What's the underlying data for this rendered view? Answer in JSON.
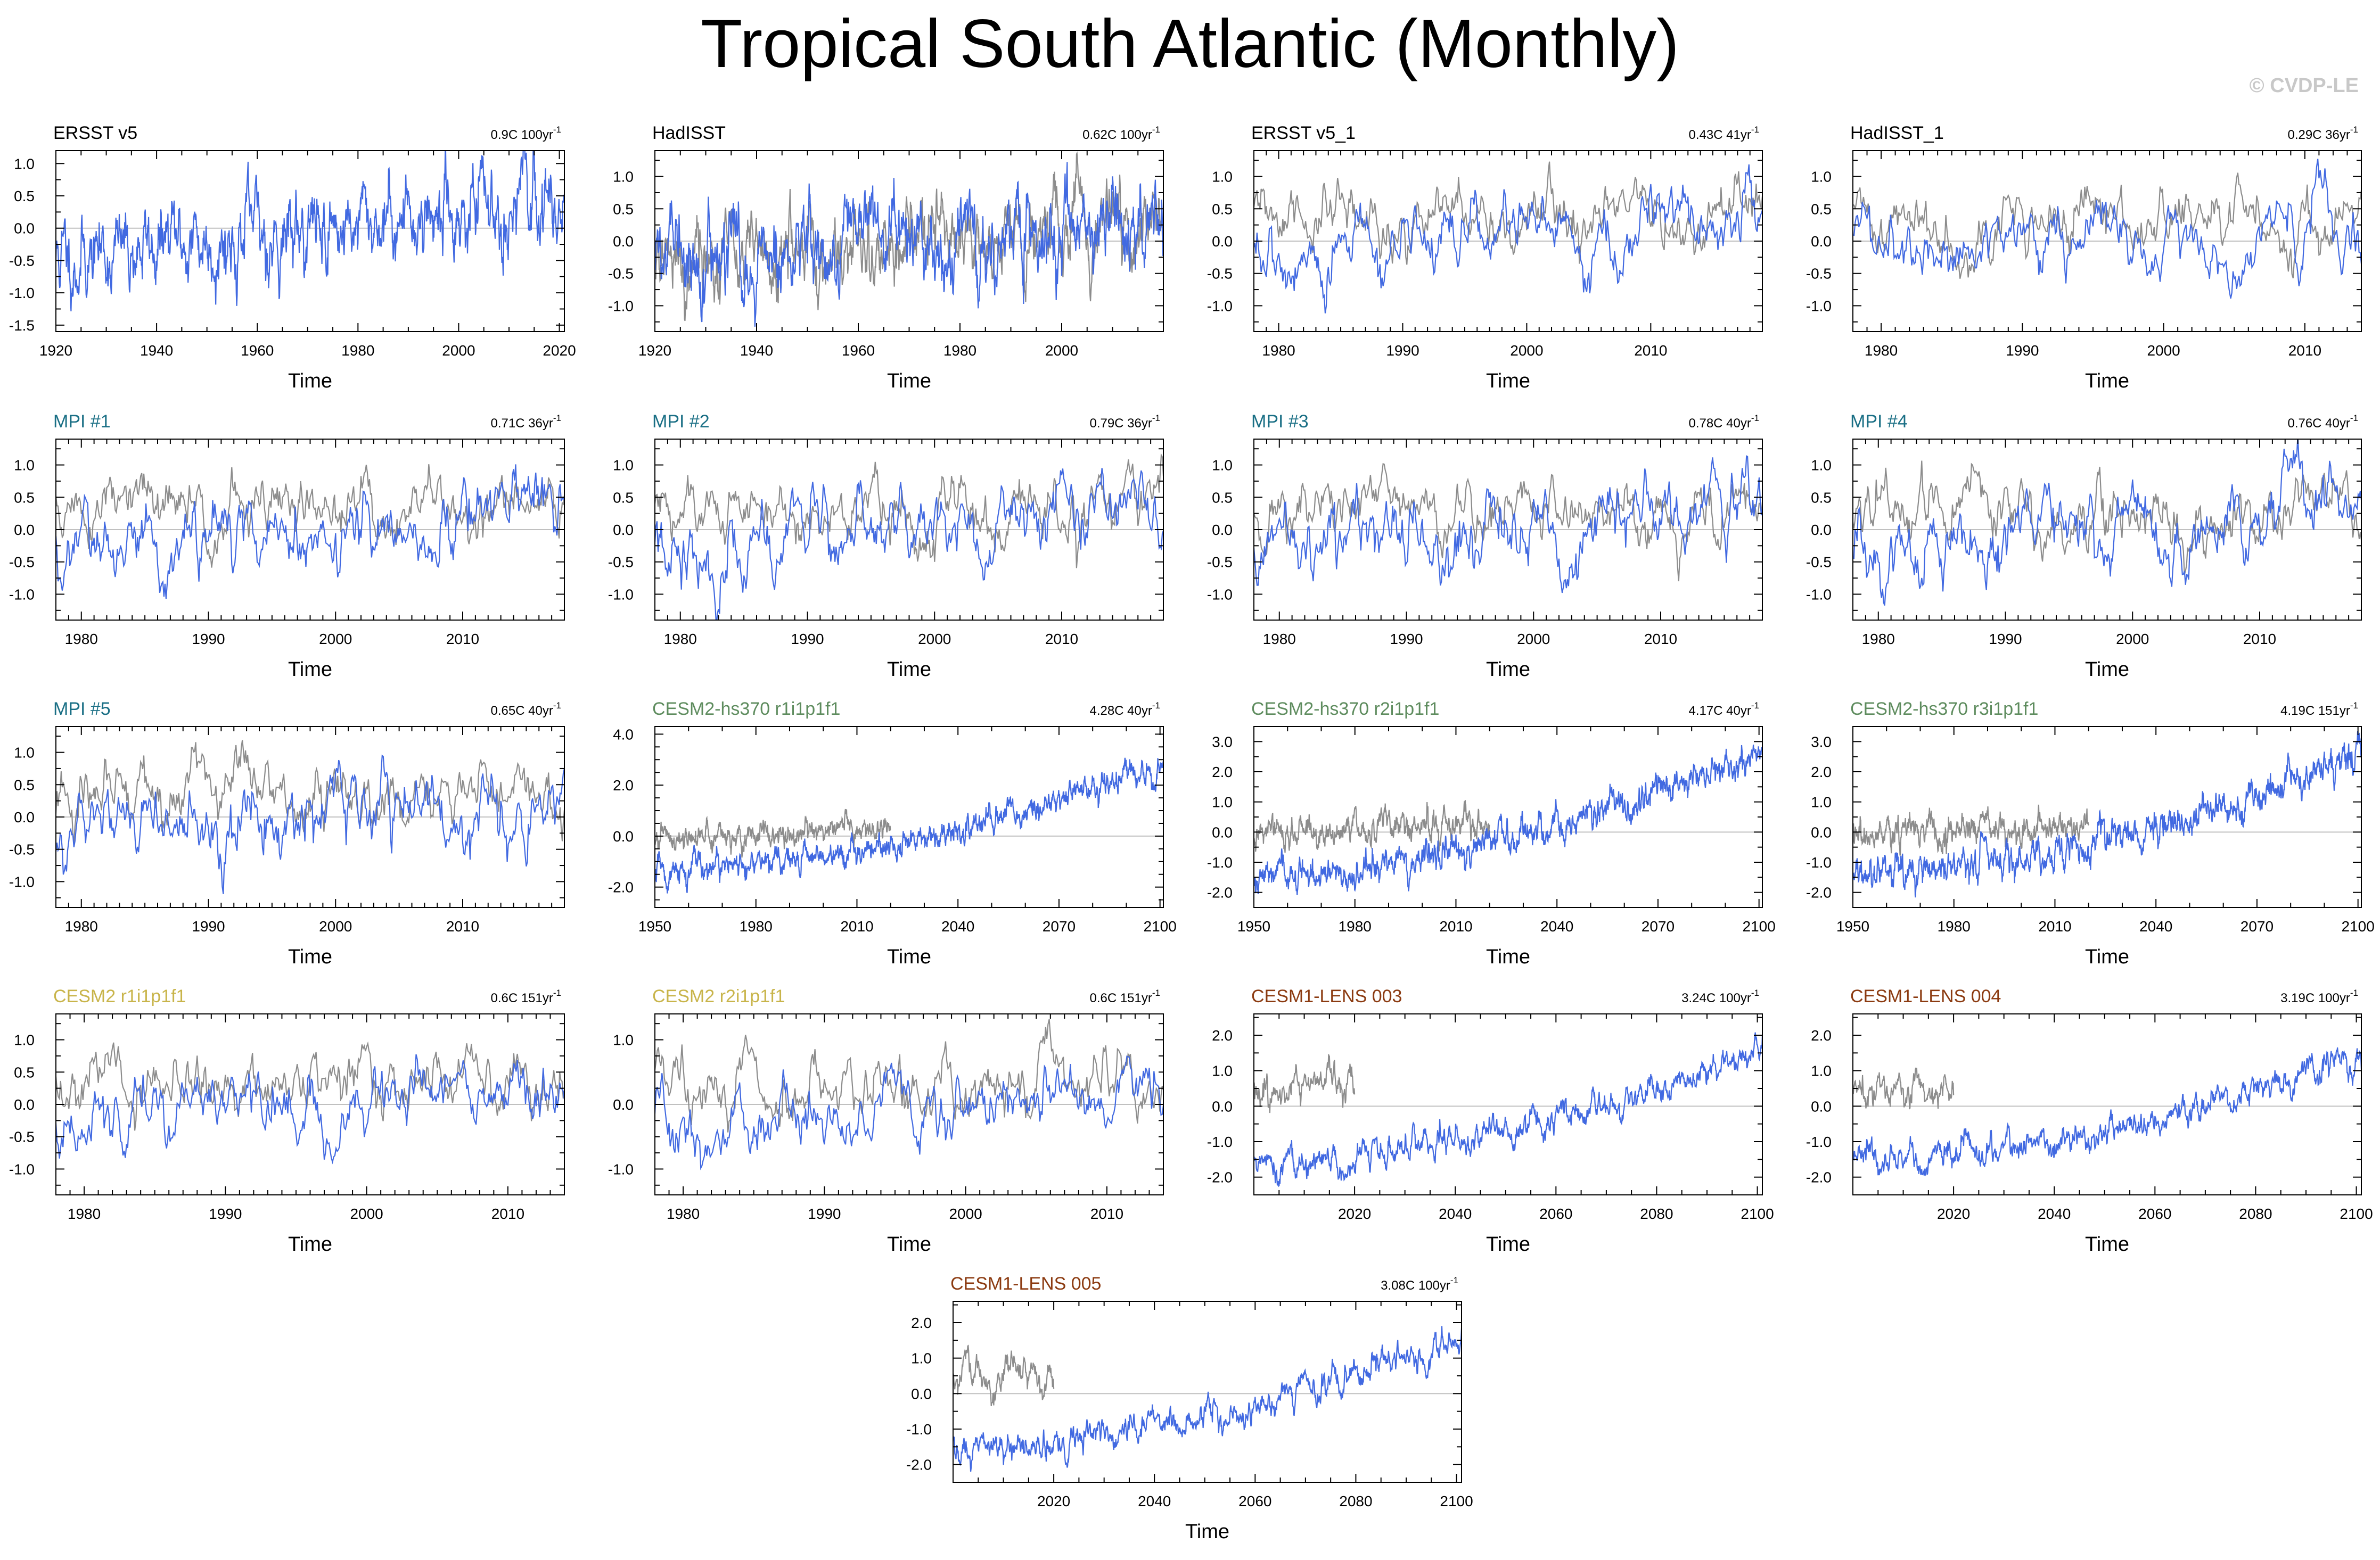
{
  "page": {
    "title": "Tropical South Atlantic (Monthly)",
    "credit": "© CVDP-LE"
  },
  "colors": {
    "model": "#4169e1",
    "obs": "#8c8c8c",
    "zero": "#c0c0c0",
    "frame": "#000000",
    "title_obs": "#000000",
    "title_mpi": "#1a6f85",
    "title_cesm2hs": "#5e8c5e",
    "title_cesm2": "#c8b44a",
    "title_lens": "#8b3a10"
  },
  "chart_data": [
    {
      "type": "line",
      "title": "ERSST v5",
      "title_color_key": "title_obs",
      "trend": "0.9C 100yr",
      "trend_sup": "-1",
      "xlabel": "Time",
      "x_range": [
        1920,
        2021
      ],
      "xticks": [
        1920,
        1940,
        1960,
        1980,
        2000,
        2020
      ],
      "ylim": [
        -1.6,
        1.2
      ],
      "yticks": [
        1.0,
        0.5,
        0.0,
        -0.5,
        -1.0,
        -1.5
      ],
      "ytick_labels": [
        "1.0",
        "0.5",
        "0.0",
        "-0.5",
        "-1.0",
        "-1.5"
      ],
      "series": [
        {
          "color_key": "model",
          "x_range": [
            1920,
            2021
          ],
          "trend_per_year": 0.009,
          "noise": 0.36,
          "mean": 0.0,
          "seed": 11
        }
      ]
    },
    {
      "type": "line",
      "title": "HadISST",
      "title_color_key": "title_obs",
      "trend": "0.62C 100yr",
      "trend_sup": "-1",
      "xlabel": "Time",
      "x_range": [
        1920,
        2020
      ],
      "xticks": [
        1920,
        1940,
        1960,
        1980,
        2000
      ],
      "ylim": [
        -1.4,
        1.4
      ],
      "yticks": [
        1.0,
        0.5,
        0.0,
        -0.5,
        -1.0
      ],
      "ytick_labels": [
        "1.0",
        "0.5",
        "0.0",
        "-0.5",
        "-1.0"
      ],
      "series": [
        {
          "color_key": "obs",
          "x_range": [
            1920,
            2020
          ],
          "trend_per_year": 0.0062,
          "noise": 0.34,
          "mean": 0.0,
          "seed": 21
        },
        {
          "color_key": "model",
          "x_range": [
            1920,
            2020
          ],
          "trend_per_year": 0.0062,
          "noise": 0.36,
          "mean": 0.0,
          "seed": 22
        }
      ]
    },
    {
      "type": "line",
      "title": "ERSST v5_1",
      "title_color_key": "title_obs",
      "trend": "0.43C 41yr",
      "trend_sup": "-1",
      "xlabel": "Time",
      "x_range": [
        1978,
        2019
      ],
      "xticks": [
        1980,
        1990,
        2000,
        2010
      ],
      "ylim": [
        -1.4,
        1.4
      ],
      "yticks": [
        1.0,
        0.5,
        0.0,
        -0.5,
        -1.0
      ],
      "ytick_labels": [
        "1.0",
        "0.5",
        "0.0",
        "-0.5",
        "-1.0"
      ],
      "series": [
        {
          "color_key": "obs",
          "x_range": [
            1978,
            2019
          ],
          "trend_per_year": 0.0,
          "noise": 0.3,
          "mean": 0.3,
          "seed": 31
        },
        {
          "color_key": "model",
          "x_range": [
            1978,
            2019
          ],
          "trend_per_year": 0.0105,
          "noise": 0.32,
          "mean": 0.0,
          "seed": 32
        }
      ]
    },
    {
      "type": "line",
      "title": "HadISST_1",
      "title_color_key": "title_obs",
      "trend": "0.29C 36yr",
      "trend_sup": "-1",
      "xlabel": "Time",
      "x_range": [
        1978,
        2014
      ],
      "xticks": [
        1980,
        1990,
        2000,
        2010
      ],
      "ylim": [
        -1.4,
        1.4
      ],
      "yticks": [
        1.0,
        0.5,
        0.0,
        -0.5,
        -1.0
      ],
      "ytick_labels": [
        "1.0",
        "0.5",
        "0.0",
        "-0.5",
        "-1.0"
      ],
      "series": [
        {
          "color_key": "obs",
          "x_range": [
            1978,
            2014
          ],
          "trend_per_year": 0.0,
          "noise": 0.3,
          "mean": 0.3,
          "seed": 41
        },
        {
          "color_key": "model",
          "x_range": [
            1978,
            2014
          ],
          "trend_per_year": 0.008,
          "noise": 0.32,
          "mean": 0.0,
          "seed": 42
        }
      ]
    },
    {
      "type": "line",
      "title": "MPI #1",
      "title_color_key": "title_mpi",
      "trend": "0.71C 36yr",
      "trend_sup": "-1",
      "xlabel": "Time",
      "x_range": [
        1978,
        2018
      ],
      "xticks": [
        1980,
        1990,
        2000,
        2010
      ],
      "ylim": [
        -1.4,
        1.4
      ],
      "yticks": [
        1.0,
        0.5,
        0.0,
        -0.5,
        -1.0
      ],
      "ytick_labels": [
        "1.0",
        "0.5",
        "0.0",
        "-0.5",
        "-1.0"
      ],
      "series": [
        {
          "color_key": "obs",
          "x_range": [
            1978,
            2018
          ],
          "trend_per_year": 0.0,
          "noise": 0.3,
          "mean": 0.3,
          "seed": 51
        },
        {
          "color_key": "model",
          "x_range": [
            1978,
            2018
          ],
          "trend_per_year": 0.0197,
          "noise": 0.34,
          "mean": 0.0,
          "seed": 52
        }
      ]
    },
    {
      "type": "line",
      "title": "MPI #2",
      "title_color_key": "title_mpi",
      "trend": "0.79C 36yr",
      "trend_sup": "-1",
      "xlabel": "Time",
      "x_range": [
        1978,
        2018
      ],
      "xticks": [
        1980,
        1990,
        2000,
        2010
      ],
      "ylim": [
        -1.4,
        1.4
      ],
      "yticks": [
        1.0,
        0.5,
        0.0,
        -0.5,
        -1.0
      ],
      "ytick_labels": [
        "1.0",
        "0.5",
        "0.0",
        "-0.5",
        "-1.0"
      ],
      "series": [
        {
          "color_key": "obs",
          "x_range": [
            1978,
            2018
          ],
          "trend_per_year": 0.0,
          "noise": 0.3,
          "mean": 0.3,
          "seed": 61
        },
        {
          "color_key": "model",
          "x_range": [
            1978,
            2018
          ],
          "trend_per_year": 0.022,
          "noise": 0.34,
          "mean": 0.0,
          "seed": 62
        }
      ]
    },
    {
      "type": "line",
      "title": "MPI #3",
      "title_color_key": "title_mpi",
      "trend": "0.78C 40yr",
      "trend_sup": "-1",
      "xlabel": "Time",
      "x_range": [
        1978,
        2018
      ],
      "xticks": [
        1980,
        1990,
        2000,
        2010
      ],
      "ylim": [
        -1.4,
        1.4
      ],
      "yticks": [
        1.0,
        0.5,
        0.0,
        -0.5,
        -1.0
      ],
      "ytick_labels": [
        "1.0",
        "0.5",
        "0.0",
        "-0.5",
        "-1.0"
      ],
      "series": [
        {
          "color_key": "obs",
          "x_range": [
            1978,
            2018
          ],
          "trend_per_year": 0.0,
          "noise": 0.3,
          "mean": 0.3,
          "seed": 71
        },
        {
          "color_key": "model",
          "x_range": [
            1978,
            2018
          ],
          "trend_per_year": 0.0195,
          "noise": 0.34,
          "mean": 0.0,
          "seed": 72
        }
      ]
    },
    {
      "type": "line",
      "title": "MPI #4",
      "title_color_key": "title_mpi",
      "trend": "0.76C 40yr",
      "trend_sup": "-1",
      "xlabel": "Time",
      "x_range": [
        1978,
        2018
      ],
      "xticks": [
        1980,
        1990,
        2000,
        2010
      ],
      "ylim": [
        -1.4,
        1.4
      ],
      "yticks": [
        1.0,
        0.5,
        0.0,
        -0.5,
        -1.0
      ],
      "ytick_labels": [
        "1.0",
        "0.5",
        "0.0",
        "-0.5",
        "-1.0"
      ],
      "series": [
        {
          "color_key": "obs",
          "x_range": [
            1978,
            2018
          ],
          "trend_per_year": 0.0,
          "noise": 0.3,
          "mean": 0.3,
          "seed": 81
        },
        {
          "color_key": "model",
          "x_range": [
            1978,
            2018
          ],
          "trend_per_year": 0.019,
          "noise": 0.34,
          "mean": 0.0,
          "seed": 82
        }
      ]
    },
    {
      "type": "line",
      "title": "MPI #5",
      "title_color_key": "title_mpi",
      "trend": "0.65C 40yr",
      "trend_sup": "-1",
      "xlabel": "Time",
      "x_range": [
        1978,
        2018
      ],
      "xticks": [
        1980,
        1990,
        2000,
        2010
      ],
      "ylim": [
        -1.4,
        1.4
      ],
      "yticks": [
        1.0,
        0.5,
        0.0,
        -0.5,
        -1.0
      ],
      "ytick_labels": [
        "1.0",
        "0.5",
        "0.0",
        "-0.5",
        "-1.0"
      ],
      "series": [
        {
          "color_key": "obs",
          "x_range": [
            1978,
            2018
          ],
          "trend_per_year": 0.0,
          "noise": 0.3,
          "mean": 0.3,
          "seed": 91
        },
        {
          "color_key": "model",
          "x_range": [
            1978,
            2018
          ],
          "trend_per_year": 0.0163,
          "noise": 0.34,
          "mean": 0.0,
          "seed": 92
        }
      ]
    },
    {
      "type": "line",
      "title": "CESM2-hs370 r1i1p1f1",
      "title_color_key": "title_cesm2hs",
      "trend": "4.28C 40yr",
      "trend_sup": "-1",
      "xlabel": "Time",
      "x_range": [
        1950,
        2101
      ],
      "xticks": [
        1950,
        1980,
        2010,
        2040,
        2070,
        2100
      ],
      "ylim": [
        -2.8,
        4.3
      ],
      "yticks": [
        4.0,
        2.0,
        0.0,
        -2.0
      ],
      "ytick_labels": [
        "4.0",
        "2.0",
        "0.0",
        "-2.0"
      ],
      "series": [
        {
          "color_key": "obs",
          "x_range": [
            1950,
            2020
          ],
          "trend_per_year": 0.006,
          "noise": 0.28,
          "mean": 0.1,
          "seed": 101
        },
        {
          "color_key": "model",
          "x_range": [
            1950,
            2101
          ],
          "curve": "warming",
          "start": -1.4,
          "end": 2.9,
          "noise": 0.3,
          "seed": 102
        }
      ]
    },
    {
      "type": "line",
      "title": "CESM2-hs370 r2i1p1f1",
      "title_color_key": "title_cesm2hs",
      "trend": "4.17C 40yr",
      "trend_sup": "-1",
      "xlabel": "Time",
      "x_range": [
        1950,
        2101
      ],
      "xticks": [
        1950,
        1980,
        2010,
        2040,
        2070,
        2100
      ],
      "ylim": [
        -2.5,
        3.5
      ],
      "yticks": [
        3.0,
        2.0,
        1.0,
        0.0,
        -1.0,
        -2.0
      ],
      "ytick_labels": [
        "3.0",
        "2.0",
        "1.0",
        "0.0",
        "-1.0",
        "-2.0"
      ],
      "series": [
        {
          "color_key": "obs",
          "x_range": [
            1950,
            2020
          ],
          "trend_per_year": 0.006,
          "noise": 0.28,
          "mean": 0.1,
          "seed": 111
        },
        {
          "color_key": "model",
          "x_range": [
            1950,
            2101
          ],
          "curve": "warming",
          "start": -1.4,
          "end": 2.7,
          "noise": 0.3,
          "seed": 112
        }
      ]
    },
    {
      "type": "line",
      "title": "CESM2-hs370 r3i1p1f1",
      "title_color_key": "title_cesm2hs",
      "trend": "4.19C 151yr",
      "trend_sup": "-1",
      "xlabel": "Time",
      "x_range": [
        1950,
        2101
      ],
      "xticks": [
        1950,
        1980,
        2010,
        2040,
        2070,
        2100
      ],
      "ylim": [
        -2.5,
        3.5
      ],
      "yticks": [
        3.0,
        2.0,
        1.0,
        0.0,
        -1.0,
        -2.0
      ],
      "ytick_labels": [
        "3.0",
        "2.0",
        "1.0",
        "0.0",
        "-1.0",
        "-2.0"
      ],
      "series": [
        {
          "color_key": "obs",
          "x_range": [
            1950,
            2020
          ],
          "trend_per_year": 0.006,
          "noise": 0.28,
          "mean": 0.1,
          "seed": 121
        },
        {
          "color_key": "model",
          "x_range": [
            1950,
            2101
          ],
          "curve": "warming",
          "start": -1.4,
          "end": 2.6,
          "noise": 0.3,
          "seed": 122
        }
      ]
    },
    {
      "type": "line",
      "title": "CESM2 r1i1p1f1",
      "title_color_key": "title_cesm2",
      "trend": "0.6C 151yr",
      "trend_sup": "-1",
      "xlabel": "Time",
      "x_range": [
        1978,
        2014
      ],
      "xticks": [
        1980,
        1990,
        2000,
        2010
      ],
      "ylim": [
        -1.4,
        1.4
      ],
      "yticks": [
        1.0,
        0.5,
        0.0,
        -0.5,
        -1.0
      ],
      "ytick_labels": [
        "1.0",
        "0.5",
        "0.0",
        "-0.5",
        "-1.0"
      ],
      "series": [
        {
          "color_key": "obs",
          "x_range": [
            1978,
            2014
          ],
          "trend_per_year": 0.0,
          "noise": 0.3,
          "mean": 0.3,
          "seed": 131
        },
        {
          "color_key": "model",
          "x_range": [
            1978,
            2014
          ],
          "trend_per_year": 0.016,
          "noise": 0.32,
          "mean": 0.0,
          "seed": 132
        }
      ]
    },
    {
      "type": "line",
      "title": "CESM2 r2i1p1f1",
      "title_color_key": "title_cesm2",
      "trend": "0.6C 151yr",
      "trend_sup": "-1",
      "xlabel": "Time",
      "x_range": [
        1978,
        2014
      ],
      "xticks": [
        1980,
        1990,
        2000,
        2010
      ],
      "ylim": [
        -1.4,
        1.4
      ],
      "yticks": [
        1.0,
        0.0,
        -1.0
      ],
      "ytick_labels": [
        "1.0",
        "0.0",
        "-1.0"
      ],
      "series": [
        {
          "color_key": "obs",
          "x_range": [
            1978,
            2014
          ],
          "trend_per_year": 0.0,
          "noise": 0.3,
          "mean": 0.3,
          "seed": 141
        },
        {
          "color_key": "model",
          "x_range": [
            1978,
            2014
          ],
          "trend_per_year": 0.016,
          "noise": 0.32,
          "mean": 0.0,
          "seed": 142
        }
      ]
    },
    {
      "type": "line",
      "title": "CESM1-LENS 003",
      "title_color_key": "title_lens",
      "trend": "3.24C 100yr",
      "trend_sup": "-1",
      "xlabel": "Time",
      "x_range": [
        2000,
        2101
      ],
      "xticks": [
        2020,
        2040,
        2060,
        2080,
        2100
      ],
      "ylim": [
        -2.5,
        2.6
      ],
      "yticks": [
        2.0,
        1.0,
        0.0,
        -1.0,
        -2.0
      ],
      "ytick_labels": [
        "2.0",
        "1.0",
        "0.0",
        "-1.0",
        "-2.0"
      ],
      "series": [
        {
          "color_key": "obs",
          "x_range": [
            2000,
            2020
          ],
          "trend_per_year": 0.0,
          "noise": 0.28,
          "mean": 0.45,
          "seed": 151
        },
        {
          "color_key": "model",
          "x_range": [
            2000,
            2101
          ],
          "curve": "warming",
          "start": -1.6,
          "end": 1.6,
          "noise": 0.25,
          "seed": 152
        }
      ]
    },
    {
      "type": "line",
      "title": "CESM1-LENS 004",
      "title_color_key": "title_lens",
      "trend": "3.19C 100yr",
      "trend_sup": "-1",
      "xlabel": "Time",
      "x_range": [
        2000,
        2101
      ],
      "xticks": [
        2020,
        2040,
        2060,
        2080,
        2100
      ],
      "ylim": [
        -2.5,
        2.6
      ],
      "yticks": [
        2.0,
        1.0,
        0.0,
        -1.0,
        -2.0
      ],
      "ytick_labels": [
        "2.0",
        "1.0",
        "0.0",
        "-1.0",
        "-2.0"
      ],
      "series": [
        {
          "color_key": "obs",
          "x_range": [
            2000,
            2020
          ],
          "trend_per_year": 0.0,
          "noise": 0.28,
          "mean": 0.45,
          "seed": 161
        },
        {
          "color_key": "model",
          "x_range": [
            2000,
            2101
          ],
          "curve": "warming",
          "start": -1.6,
          "end": 1.6,
          "noise": 0.25,
          "seed": 162
        }
      ]
    },
    {
      "type": "line",
      "title": "CESM1-LENS 005",
      "title_color_key": "title_lens",
      "trend": "3.08C 100yr",
      "trend_sup": "-1",
      "xlabel": "Time",
      "x_range": [
        2000,
        2101
      ],
      "xticks": [
        2020,
        2040,
        2060,
        2080,
        2100
      ],
      "ylim": [
        -2.5,
        2.6
      ],
      "yticks": [
        2.0,
        1.0,
        0.0,
        -1.0,
        -2.0
      ],
      "ytick_labels": [
        "2.0",
        "1.0",
        "0.0",
        "-1.0",
        "-2.0"
      ],
      "series": [
        {
          "color_key": "obs",
          "x_range": [
            2000,
            2020
          ],
          "trend_per_year": 0.0,
          "noise": 0.28,
          "mean": 0.45,
          "seed": 171
        },
        {
          "color_key": "model",
          "x_range": [
            2000,
            2101
          ],
          "curve": "warming",
          "start": -1.5,
          "end": 1.5,
          "noise": 0.25,
          "seed": 172
        }
      ]
    }
  ]
}
